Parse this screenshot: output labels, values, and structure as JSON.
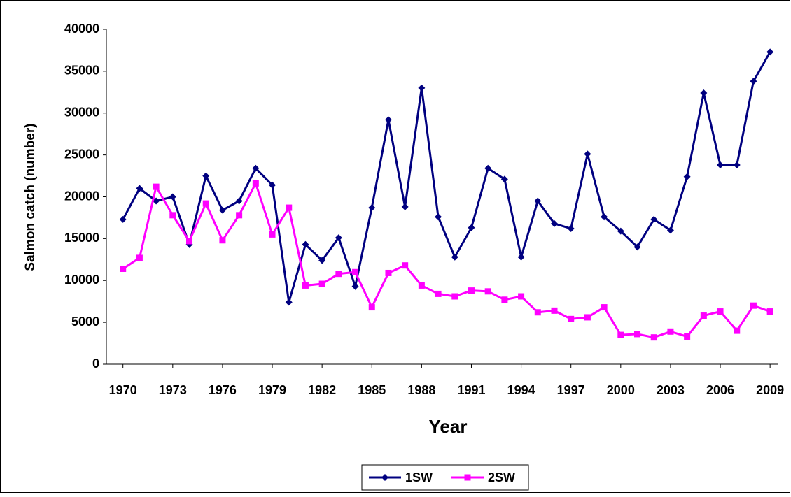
{
  "chart_data": {
    "type": "line",
    "x_label": "Year",
    "y_label": "Salmon catch (number)",
    "x": [
      1970,
      1971,
      1972,
      1973,
      1974,
      1975,
      1976,
      1977,
      1978,
      1979,
      1980,
      1981,
      1982,
      1983,
      1984,
      1985,
      1986,
      1987,
      1988,
      1989,
      1990,
      1991,
      1992,
      1993,
      1994,
      1995,
      1996,
      1997,
      1998,
      1999,
      2000,
      2001,
      2002,
      2003,
      2004,
      2005,
      2006,
      2007,
      2008,
      2009
    ],
    "series": [
      {
        "name": "1SW",
        "color": "#000080",
        "marker": "diamond",
        "values": [
          17300,
          21000,
          19500,
          20000,
          14300,
          22500,
          18400,
          19500,
          23400,
          21400,
          7400,
          14300,
          12400,
          15100,
          9300,
          18700,
          29200,
          18800,
          33000,
          17600,
          12800,
          16300,
          23400,
          22100,
          12800,
          19500,
          16800,
          16200,
          25100,
          17600,
          15900,
          14000,
          17300,
          16000,
          22400,
          32400,
          23800,
          23800,
          33800,
          37300
        ]
      },
      {
        "name": "2SW",
        "color": "#ff00ff",
        "marker": "square",
        "values": [
          11400,
          12700,
          21200,
          17800,
          14700,
          19200,
          14800,
          17800,
          21600,
          15500,
          18700,
          9400,
          9600,
          10800,
          11000,
          6800,
          10900,
          11800,
          9400,
          8400,
          8100,
          8800,
          8700,
          7700,
          8100,
          6200,
          6400,
          5400,
          5600,
          6800,
          3500,
          3600,
          3200,
          3900,
          3300,
          5800,
          6300,
          4000,
          7000,
          6300
        ]
      }
    ],
    "xlim": [
      1969,
      2009.5
    ],
    "xticks": [
      1970,
      1973,
      1976,
      1979,
      1982,
      1985,
      1988,
      1991,
      1994,
      1997,
      2000,
      2003,
      2006,
      2009
    ],
    "ylim": [
      0,
      40000
    ],
    "yticks": [
      0,
      5000,
      10000,
      15000,
      20000,
      25000,
      30000,
      35000,
      40000
    ],
    "legend": "bottom"
  }
}
